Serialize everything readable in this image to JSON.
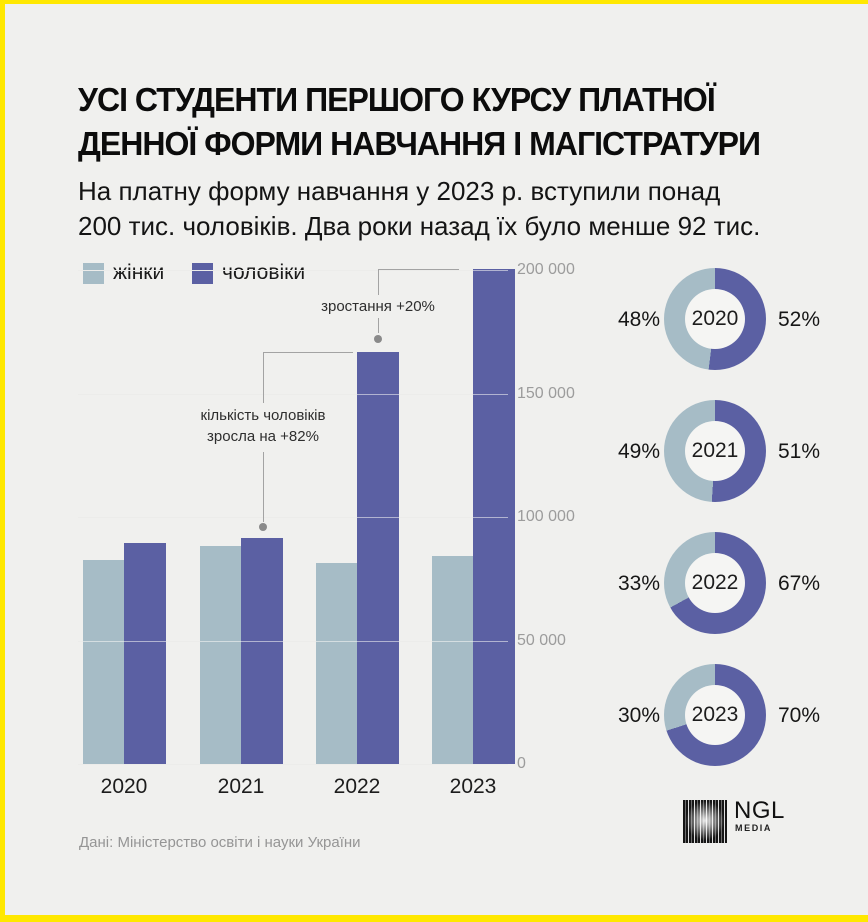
{
  "page": {
    "background": "#f0f0ee",
    "border_color": "#ffe800"
  },
  "header": {
    "title_line1": "УСІ СТУДЕНТИ ПЕРШОГО КУРСУ ПЛАТНОЇ",
    "title_line2": "ДЕННОЇ ФОРМИ НАВЧАННЯ І МАГІСТРАТУРИ",
    "subtitle_line1": "На платну форму навчання у 2023 р. вступили понад",
    "subtitle_line2": "200 тис. чоловіків. Два роки назад їх було менше 92 тис."
  },
  "legend": {
    "items": [
      {
        "label": "жінки",
        "color": "#a6bcc6"
      },
      {
        "label": "чоловіки",
        "color": "#5b60a3"
      }
    ]
  },
  "chart_data": [
    {
      "type": "bar",
      "title": "Студенти першого курсу платної денної форми навчання і магістратури",
      "categories": [
        "2020",
        "2021",
        "2022",
        "2023"
      ],
      "series": [
        {
          "name": "жінки",
          "color": "#a6bcc6",
          "values": [
            82600,
            88300,
            81400,
            84200
          ]
        },
        {
          "name": "чоловіки",
          "color": "#5b60a3",
          "values": [
            89500,
            91500,
            167000,
            200500
          ]
        }
      ],
      "ylim": [
        0,
        200000
      ],
      "ytick_step": 50000,
      "ytick_labels": [
        "0",
        "50 000",
        "100 000",
        "150 000",
        "200 000"
      ],
      "grid": true,
      "legend_position": "top-left",
      "annotations": [
        {
          "text": "кількість чоловіків зросла на +82%",
          "refers_to": "чоловіки 2021 → 2022"
        },
        {
          "text": "зростання +20%",
          "refers_to": "чоловіки 2022 → 2023"
        }
      ]
    },
    {
      "type": "pie",
      "subtype": "donut",
      "colors": {
        "women": "#a6bcc6",
        "men": "#5b60a3"
      },
      "rows": [
        {
          "year": "2020",
          "women_pct": 48,
          "men_pct": 52,
          "left_label": "48%",
          "right_label": "52%"
        },
        {
          "year": "2021",
          "women_pct": 49,
          "men_pct": 51,
          "left_label": "49%",
          "right_label": "51%"
        },
        {
          "year": "2022",
          "women_pct": 33,
          "men_pct": 67,
          "left_label": "33%",
          "right_label": "67%"
        },
        {
          "year": "2023",
          "women_pct": 30,
          "men_pct": 70,
          "left_label": "30%",
          "right_label": "70%"
        }
      ]
    }
  ],
  "annotations": {
    "a82_line1": "кількість чоловіків",
    "a82_line2": "зросла на +82%",
    "a20_text": "зростання +20%"
  },
  "footer": {
    "source": "Дані: Міністерство освіти і науки України",
    "logo_text": "NGL",
    "logo_sub": "MEDIA"
  }
}
